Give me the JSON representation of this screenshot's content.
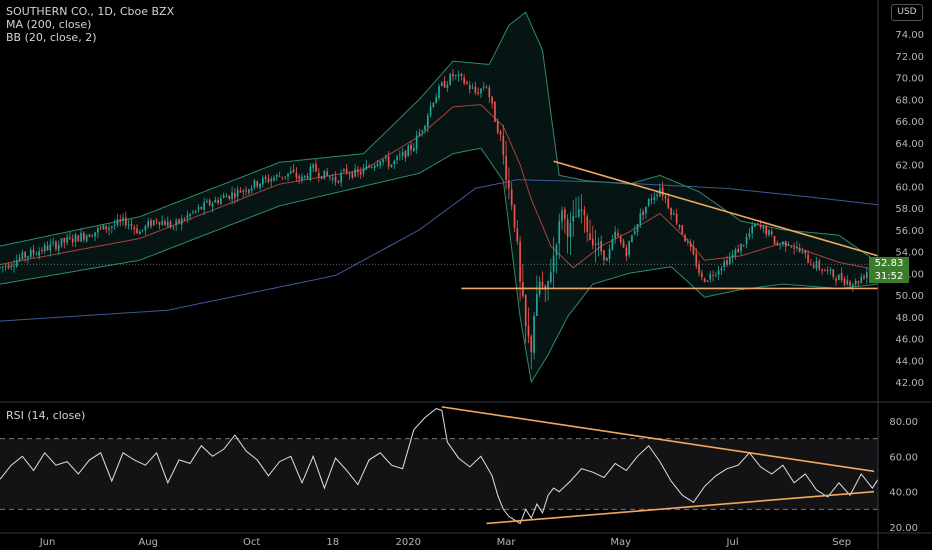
{
  "legend": {
    "symbol": "SOUTHERN CO., 1D, Cboe BZX",
    "ma": "MA (200, close)",
    "bb": "BB (20, close, 2)",
    "rsi": "RSI (14, close)"
  },
  "currency_button": "USD",
  "price_tag": "52.83",
  "countdown_tag": "31:52",
  "colors": {
    "background": "#000000",
    "up": "#26a69a",
    "down": "#ef5350",
    "ma": "#3d5a99",
    "bb_band": "#2d8a6a",
    "bb_basis": "#a8403d",
    "trendline": "#f0a860",
    "rsi": "#e0e0e0",
    "tag": "#3b7d2b"
  },
  "chart_data": [
    {
      "type": "candlestick",
      "title": "SOUTHERN CO., 1D, Cboe BZX",
      "y_ticks": [
        "42.00",
        "44.00",
        "46.00",
        "48.00",
        "50.00",
        "52.00",
        "54.00",
        "56.00",
        "58.00",
        "60.00",
        "62.00",
        "64.00",
        "66.00",
        "68.00",
        "70.00",
        "72.00",
        "74.00"
      ],
      "ylim": [
        41,
        76
      ],
      "x_ticks": [
        "Jun",
        "Aug",
        "Oct",
        "18",
        "2020",
        "Mar",
        "May",
        "Jul",
        "Sep"
      ],
      "last_price": 52.83,
      "price_path": [
        [
          0,
          52.5
        ],
        [
          8,
          53.5
        ],
        [
          15,
          54.2
        ],
        [
          22,
          54.8
        ],
        [
          30,
          55.5
        ],
        [
          38,
          56.2
        ],
        [
          45,
          56.8
        ],
        [
          50,
          55.8
        ],
        [
          56,
          57.0
        ],
        [
          62,
          56.3
        ],
        [
          68,
          57.4
        ],
        [
          74,
          58.3
        ],
        [
          80,
          59.0
        ],
        [
          86,
          59.6
        ],
        [
          92,
          60.3
        ],
        [
          98,
          60.8
        ],
        [
          104,
          61.2
        ],
        [
          108,
          60.6
        ],
        [
          112,
          61.6
        ],
        [
          116,
          61.0
        ],
        [
          120,
          60.6
        ],
        [
          124,
          61.4
        ],
        [
          128,
          61.1
        ],
        [
          132,
          61.8
        ],
        [
          136,
          62.6
        ],
        [
          140,
          62.0
        ],
        [
          144,
          62.8
        ],
        [
          148,
          63.8
        ],
        [
          152,
          66.0
        ],
        [
          155,
          68.0
        ],
        [
          158,
          69.2
        ],
        [
          162,
          70.2
        ],
        [
          166,
          69.6
        ],
        [
          170,
          68.6
        ],
        [
          174,
          69.3
        ],
        [
          177,
          66.2
        ],
        [
          179,
          64.5
        ],
        [
          181,
          61.0
        ],
        [
          183,
          58.5
        ],
        [
          185,
          54.5
        ],
        [
          186,
          51.0
        ],
        [
          187,
          49.5
        ],
        [
          188,
          47.0
        ],
        [
          190,
          45.0
        ],
        [
          191,
          48.2
        ],
        [
          193,
          51.2
        ],
        [
          195,
          50.1
        ],
        [
          197,
          52.3
        ],
        [
          199,
          55.0
        ],
        [
          201,
          58.0
        ],
        [
          203,
          55.8
        ],
        [
          205,
          56.9
        ],
        [
          208,
          57.8
        ],
        [
          211,
          55.2
        ],
        [
          214,
          54.5
        ],
        [
          217,
          53.2
        ],
        [
          220,
          55.6
        ],
        [
          224,
          54.0
        ],
        [
          228,
          56.8
        ],
        [
          232,
          58.6
        ],
        [
          236,
          59.9
        ],
        [
          240,
          57.8
        ],
        [
          243,
          56.4
        ],
        [
          246,
          54.6
        ],
        [
          249,
          52.9
        ],
        [
          251,
          51.4
        ],
        [
          254,
          51.8
        ],
        [
          258,
          52.8
        ],
        [
          262,
          53.6
        ],
        [
          266,
          54.8
        ],
        [
          270,
          56.4
        ],
        [
          274,
          55.9
        ],
        [
          278,
          54.6
        ],
        [
          282,
          54.9
        ],
        [
          286,
          54.0
        ],
        [
          290,
          53.0
        ],
        [
          294,
          52.4
        ],
        [
          298,
          51.8
        ],
        [
          302,
          51.4
        ],
        [
          306,
          51.1
        ],
        [
          310,
          52.2
        ],
        [
          314,
          52.8
        ]
      ],
      "series": [
        {
          "name": "MA (200, close)",
          "points": [
            [
              0,
              47.6
            ],
            [
              60,
              48.6
            ],
            [
              120,
              51.8
            ],
            [
              150,
              56.0
            ],
            [
              170,
              59.8
            ],
            [
              185,
              60.6
            ],
            [
              215,
              60.4
            ],
            [
              260,
              59.8
            ],
            [
              290,
              59.0
            ],
            [
              314,
              58.3
            ]
          ]
        },
        {
          "name": "BB upper",
          "points": [
            [
              0,
              54.5
            ],
            [
              50,
              57.2
            ],
            [
              100,
              62.2
            ],
            [
              130,
              63.0
            ],
            [
              150,
              68.0
            ],
            [
              162,
              71.5
            ],
            [
              175,
              71.2
            ],
            [
              182,
              74.8
            ],
            [
              188,
              76.0
            ],
            [
              194,
              72.5
            ],
            [
              200,
              61.0
            ],
            [
              210,
              60.5
            ],
            [
              225,
              60.2
            ],
            [
              236,
              61.0
            ],
            [
              250,
              59.5
            ],
            [
              265,
              56.8
            ],
            [
              280,
              56.0
            ],
            [
              300,
              55.5
            ],
            [
              314,
              53.0
            ]
          ]
        },
        {
          "name": "BB lower",
          "points": [
            [
              0,
              51.0
            ],
            [
              50,
              53.2
            ],
            [
              100,
              58.2
            ],
            [
              130,
              60.0
            ],
            [
              150,
              61.2
            ],
            [
              162,
              63.0
            ],
            [
              172,
              63.5
            ],
            [
              180,
              60.5
            ],
            [
              186,
              48.0
            ],
            [
              190,
              42.0
            ],
            [
              196,
              44.5
            ],
            [
              203,
              48.0
            ],
            [
              212,
              51.0
            ],
            [
              225,
              52.0
            ],
            [
              240,
              52.6
            ],
            [
              252,
              49.8
            ],
            [
              265,
              50.5
            ],
            [
              280,
              51.0
            ],
            [
              300,
              50.6
            ],
            [
              314,
              51.0
            ]
          ]
        },
        {
          "name": "BB basis",
          "points": [
            [
              0,
              52.8
            ],
            [
              50,
              55.2
            ],
            [
              100,
              60.2
            ],
            [
              130,
              61.5
            ],
            [
              150,
              64.6
            ],
            [
              162,
              67.3
            ],
            [
              172,
              67.5
            ],
            [
              180,
              65.5
            ],
            [
              186,
              62.0
            ],
            [
              190,
              58.8
            ],
            [
              197,
              54.5
            ],
            [
              205,
              52.5
            ],
            [
              215,
              54.5
            ],
            [
              225,
              55.8
            ],
            [
              236,
              57.5
            ],
            [
              246,
              55.0
            ],
            [
              252,
              53.2
            ],
            [
              265,
              53.6
            ],
            [
              280,
              54.8
            ],
            [
              300,
              53.0
            ],
            [
              314,
              52.3
            ]
          ]
        }
      ],
      "trendlines": [
        {
          "from": [
            198,
            62.3
          ],
          "to": [
            314,
            53.6
          ]
        },
        {
          "from": [
            165,
            50.6
          ],
          "to": [
            314,
            50.6
          ]
        }
      ]
    },
    {
      "type": "line",
      "title": "RSI (14, close)",
      "y_ticks": [
        "20.00",
        "40.00",
        "60.00",
        "80.00"
      ],
      "ylim": [
        16,
        92
      ],
      "bands": [
        30,
        70
      ],
      "series": [
        {
          "name": "RSI (14, close)",
          "points": [
            [
              0,
              47
            ],
            [
              4,
              55
            ],
            [
              8,
              60
            ],
            [
              12,
              52
            ],
            [
              16,
              62
            ],
            [
              20,
              55
            ],
            [
              24,
              57
            ],
            [
              28,
              50
            ],
            [
              32,
              58
            ],
            [
              36,
              62
            ],
            [
              40,
              46
            ],
            [
              44,
              62
            ],
            [
              48,
              58
            ],
            [
              52,
              55
            ],
            [
              56,
              62
            ],
            [
              60,
              45
            ],
            [
              64,
              58
            ],
            [
              68,
              56
            ],
            [
              72,
              66
            ],
            [
              76,
              60
            ],
            [
              80,
              64
            ],
            [
              84,
              72
            ],
            [
              88,
              63
            ],
            [
              92,
              58
            ],
            [
              96,
              49
            ],
            [
              100,
              57
            ],
            [
              104,
              60
            ],
            [
              108,
              45
            ],
            [
              112,
              60
            ],
            [
              116,
              42
            ],
            [
              120,
              59
            ],
            [
              124,
              52
            ],
            [
              128,
              44
            ],
            [
              132,
              58
            ],
            [
              136,
              62
            ],
            [
              140,
              55
            ],
            [
              144,
              53
            ],
            [
              148,
              75
            ],
            [
              152,
              82
            ],
            [
              156,
              87
            ],
            [
              158,
              86
            ],
            [
              160,
              68
            ],
            [
              164,
              59
            ],
            [
              168,
              54
            ],
            [
              172,
              60
            ],
            [
              176,
              49
            ],
            [
              178,
              38
            ],
            [
              180,
              30
            ],
            [
              182,
              26
            ],
            [
              184,
              24
            ],
            [
              186,
              22
            ],
            [
              188,
              30
            ],
            [
              190,
              25
            ],
            [
              192,
              33
            ],
            [
              194,
              28
            ],
            [
              196,
              38
            ],
            [
              198,
              42
            ],
            [
              200,
              40
            ],
            [
              204,
              46
            ],
            [
              208,
              53
            ],
            [
              212,
              51
            ],
            [
              216,
              48
            ],
            [
              220,
              56
            ],
            [
              224,
              52
            ],
            [
              228,
              60
            ],
            [
              232,
              66
            ],
            [
              236,
              57
            ],
            [
              240,
              46
            ],
            [
              244,
              38
            ],
            [
              248,
              34
            ],
            [
              252,
              43
            ],
            [
              256,
              49
            ],
            [
              260,
              53
            ],
            [
              264,
              55
            ],
            [
              268,
              62
            ],
            [
              272,
              54
            ],
            [
              276,
              50
            ],
            [
              280,
              55
            ],
            [
              284,
              45
            ],
            [
              288,
              50
            ],
            [
              292,
              41
            ],
            [
              296,
              37
            ],
            [
              300,
              45
            ],
            [
              304,
              38
            ],
            [
              308,
              50
            ],
            [
              312,
              42
            ],
            [
              314,
              47
            ]
          ]
        }
      ],
      "trendlines": [
        {
          "from": [
            158,
            88
          ],
          "to": [
            314,
            51.5
          ]
        },
        {
          "from": [
            174,
            22
          ],
          "to": [
            314,
            40
          ]
        }
      ]
    }
  ]
}
